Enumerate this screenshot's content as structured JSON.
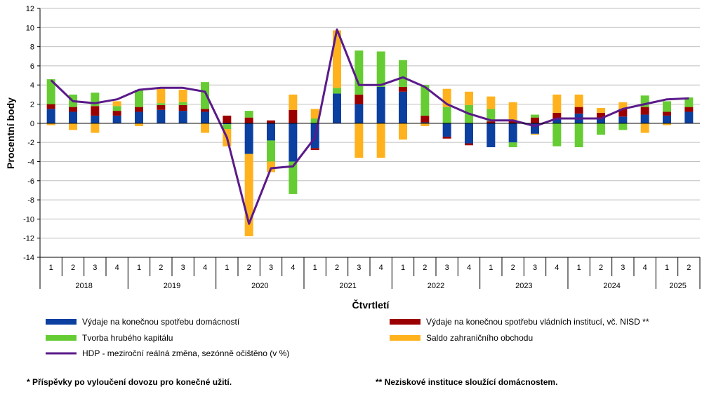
{
  "chart_data": {
    "type": "bar",
    "stacked": true,
    "xlabel": "Čtvrtletí",
    "ylabel": "Procentní body",
    "ylim": [
      -14,
      12
    ],
    "ytick_step": 2,
    "grid": true,
    "years": [
      "2018",
      "2019",
      "2020",
      "2021",
      "2022",
      "2023",
      "2024",
      "2025"
    ],
    "quarters_per_year": [
      4,
      4,
      4,
      4,
      4,
      4,
      4,
      2
    ],
    "categories": [
      "1",
      "2",
      "3",
      "4",
      "1",
      "2",
      "3",
      "4",
      "1",
      "2",
      "3",
      "4",
      "1",
      "2",
      "3",
      "4",
      "1",
      "2",
      "3",
      "4",
      "1",
      "2",
      "3",
      "4",
      "1",
      "2",
      "3",
      "4",
      "1",
      "2"
    ],
    "series": [
      {
        "name": "Výdaje na konečnou spotřebu domácností",
        "color": "#0b3fa0",
        "values": [
          1.5,
          1.2,
          0.8,
          0.8,
          1.2,
          1.4,
          1.3,
          1.2,
          -0.1,
          -3.2,
          -1.8,
          -4.0,
          -2.6,
          3.1,
          2.0,
          3.8,
          3.3,
          0.1,
          -1.4,
          -2.1,
          -2.5,
          -2.0,
          -1.1,
          0.5,
          1.0,
          0.5,
          0.7,
          0.9,
          0.8,
          1.2
        ]
      },
      {
        "name": "Výdaje na konečnou spotřebu vládních institucí, vč. NISD **",
        "color": "#9b0000",
        "values": [
          0.5,
          0.5,
          1.0,
          0.5,
          0.5,
          0.5,
          0.6,
          0.3,
          0.8,
          0.6,
          0.3,
          1.4,
          -0.2,
          0.0,
          1.0,
          0.0,
          0.5,
          0.7,
          -0.2,
          -0.2,
          0.2,
          0.3,
          0.6,
          0.6,
          0.7,
          0.6,
          0.8,
          0.8,
          0.4,
          0.5
        ]
      },
      {
        "name": "Tvorba hrubého kapitálu",
        "color": "#66cc33",
        "values": [
          2.6,
          1.3,
          1.4,
          0.5,
          1.8,
          0.2,
          0.3,
          2.8,
          -0.5,
          0.7,
          -2.2,
          -3.4,
          0.5,
          0.6,
          4.6,
          3.7,
          2.8,
          3.2,
          1.7,
          1.9,
          1.3,
          -0.5,
          0.3,
          -2.4,
          -2.5,
          -1.2,
          -0.7,
          1.2,
          1.1,
          1.0
        ]
      },
      {
        "name": "Saldo zahraničního obchodu",
        "color": "#ffb21d",
        "values": [
          -0.2,
          -0.7,
          -1.0,
          0.5,
          -0.3,
          1.5,
          1.3,
          -1.0,
          -1.8,
          -8.6,
          -1.1,
          1.6,
          1.0,
          6.0,
          -3.6,
          -3.6,
          -1.7,
          -0.3,
          1.9,
          1.4,
          1.3,
          1.9,
          -0.1,
          1.9,
          1.3,
          0.5,
          0.7,
          -1.0,
          -0.2,
          0.0
        ]
      },
      {
        "name": "HDP - meziroční reálná změna, sezónně očištěno (v %)",
        "color": "#5a1a8a",
        "type": "line",
        "values": [
          4.5,
          2.3,
          2.1,
          2.5,
          3.5,
          3.7,
          3.7,
          3.3,
          -1.5,
          -10.5,
          -4.7,
          -4.5,
          -1.5,
          9.8,
          4.0,
          4.0,
          4.8,
          3.8,
          2.0,
          1.0,
          0.3,
          0.3,
          -0.3,
          0.5,
          0.5,
          0.5,
          1.5,
          2.0,
          2.5,
          2.6
        ]
      }
    ],
    "footnotes": [
      "* Příspěvky po vyloučení dovozu pro konečné užití.",
      "** Neziskové instituce sloužící domácnostem."
    ]
  }
}
